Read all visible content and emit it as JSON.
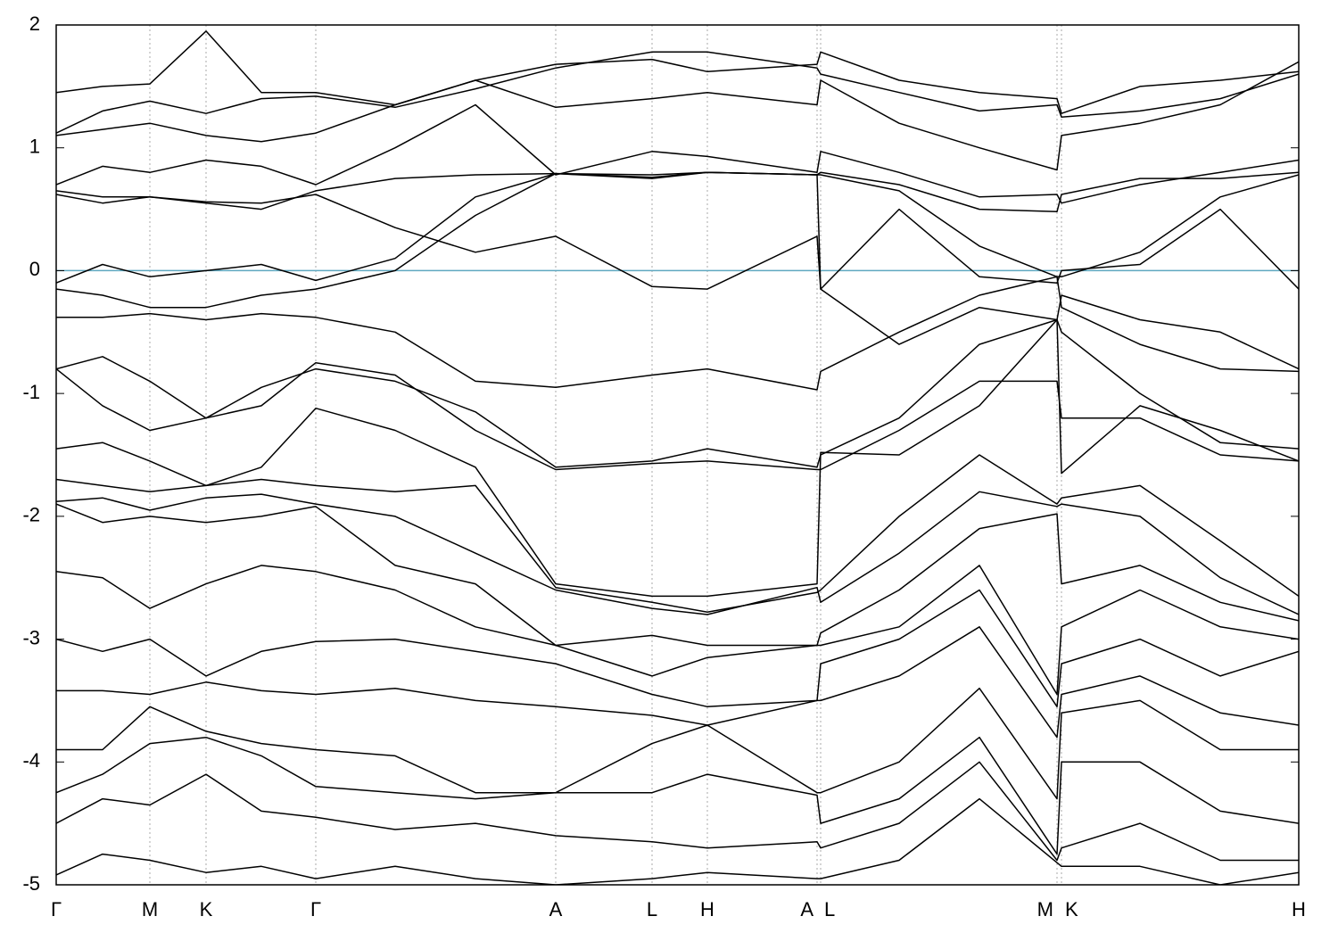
{
  "chart_data": {
    "type": "line",
    "color": "#000000",
    "reference_line": {
      "value": 0,
      "color": "#5fa8c0"
    },
    "xlim": [
      0,
      1393
    ],
    "xticks": [
      {
        "value": 0,
        "label": "Γ"
      },
      {
        "value": 105,
        "label": "M"
      },
      {
        "value": 168,
        "label": "K"
      },
      {
        "value": 291,
        "label": "Γ"
      },
      {
        "value": 560,
        "label": "A"
      },
      {
        "value": 668,
        "label": "L"
      },
      {
        "value": 730,
        "label": "H"
      },
      {
        "value": 853,
        "label": "A"
      },
      {
        "value": 857,
        "label": "L"
      },
      {
        "value": 1122,
        "label": "M"
      },
      {
        "value": 1127,
        "label": "K"
      },
      {
        "value": 1393,
        "label": "H"
      }
    ],
    "ylim": [
      -5,
      2
    ],
    "yticks": [
      -5,
      -4,
      -3,
      -2,
      -1,
      0,
      1,
      2
    ],
    "x_grid": true,
    "x": [
      0,
      52,
      105,
      168,
      230,
      291,
      380,
      470,
      560,
      668,
      730,
      853,
      857,
      945,
      1035,
      1122,
      1127,
      1215,
      1305,
      1393
    ],
    "series": [
      {
        "values": [
          1.45,
          1.5,
          1.52,
          1.95,
          1.45,
          1.45,
          1.35,
          1.55,
          1.68,
          1.72,
          1.62,
          1.68,
          1.78,
          1.55,
          1.45,
          1.4,
          1.28,
          1.5,
          1.55,
          1.62
        ]
      },
      {
        "values": [
          1.12,
          1.3,
          1.38,
          1.28,
          1.4,
          1.42,
          1.33,
          1.48,
          1.65,
          1.78,
          1.78,
          1.65,
          1.6,
          1.45,
          1.3,
          1.35,
          1.25,
          1.3,
          1.4,
          1.6
        ]
      },
      {
        "values": [
          1.1,
          1.15,
          1.2,
          1.1,
          1.05,
          1.12,
          1.35,
          1.55,
          1.33,
          1.4,
          1.45,
          1.35,
          1.55,
          1.2,
          1.0,
          0.82,
          1.1,
          1.2,
          1.35,
          1.7
        ]
      },
      {
        "values": [
          0.7,
          0.85,
          0.8,
          0.9,
          0.85,
          0.7,
          1.0,
          1.35,
          0.78,
          0.97,
          0.93,
          0.8,
          0.97,
          0.8,
          0.6,
          0.62,
          0.55,
          0.7,
          0.8,
          0.9
        ]
      },
      {
        "values": [
          0.65,
          0.6,
          0.6,
          0.55,
          0.5,
          0.65,
          0.75,
          0.78,
          0.79,
          0.75,
          0.8,
          0.78,
          0.8,
          0.7,
          0.5,
          0.48,
          0.62,
          0.75,
          0.75,
          0.8
        ]
      },
      {
        "values": [
          0.62,
          0.55,
          0.6,
          0.56,
          0.55,
          0.62,
          0.35,
          0.15,
          0.28,
          -0.13,
          -0.15,
          0.28,
          -0.15,
          0.5,
          -0.05,
          -0.1,
          0.0,
          0.05,
          0.5,
          -0.15
        ]
      },
      {
        "values": [
          -0.1,
          0.05,
          -0.05,
          0.0,
          0.05,
          -0.08,
          0.1,
          0.6,
          0.79,
          0.78,
          0.8,
          0.78,
          0.78,
          0.65,
          0.2,
          -0.05,
          -0.05,
          0.15,
          0.6,
          0.78
        ]
      },
      {
        "values": [
          -0.15,
          -0.2,
          -0.3,
          -0.3,
          -0.2,
          -0.15,
          0.0,
          0.45,
          0.79,
          0.76,
          0.8,
          0.78,
          -0.15,
          -0.6,
          -0.3,
          -0.4,
          -0.2,
          -0.4,
          -0.5,
          -0.8
        ]
      },
      {
        "values": [
          -0.38,
          -0.38,
          -0.35,
          -0.4,
          -0.35,
          -0.38,
          -0.5,
          -0.9,
          -0.95,
          -0.85,
          -0.8,
          -0.97,
          -0.82,
          -0.5,
          -0.2,
          -0.05,
          -0.3,
          -0.6,
          -0.8,
          -0.82
        ]
      },
      {
        "values": [
          -0.8,
          -0.7,
          -0.9,
          -1.2,
          -0.95,
          -0.8,
          -0.9,
          -1.15,
          -1.6,
          -1.55,
          -1.45,
          -1.6,
          -1.5,
          -1.2,
          -0.6,
          -0.4,
          -0.5,
          -1.0,
          -1.4,
          -1.45
        ]
      },
      {
        "values": [
          -0.8,
          -1.1,
          -1.3,
          -1.2,
          -1.1,
          -0.75,
          -0.85,
          -1.3,
          -1.62,
          -1.57,
          -1.55,
          -1.62,
          -1.62,
          -1.3,
          -0.9,
          -0.9,
          -1.2,
          -1.2,
          -1.5,
          -1.55
        ]
      },
      {
        "values": [
          -1.45,
          -1.4,
          -1.55,
          -1.75,
          -1.6,
          -1.12,
          -1.3,
          -1.6,
          -2.55,
          -2.65,
          -2.65,
          -2.55,
          -1.48,
          -1.5,
          -1.1,
          -0.4,
          -1.65,
          -1.1,
          -1.3,
          -1.55
        ]
      },
      {
        "values": [
          -1.7,
          -1.75,
          -1.8,
          -1.75,
          -1.7,
          -1.75,
          -1.8,
          -1.75,
          -2.58,
          -2.7,
          -2.78,
          -2.62,
          -2.6,
          -2.0,
          -1.5,
          -1.9,
          -1.85,
          -1.75,
          -2.2,
          -2.65
        ]
      },
      {
        "values": [
          -1.88,
          -1.85,
          -1.95,
          -1.85,
          -1.82,
          -1.9,
          -2.0,
          -2.3,
          -2.6,
          -2.75,
          -2.8,
          -2.58,
          -2.7,
          -2.3,
          -1.8,
          -1.92,
          -1.9,
          -2.0,
          -2.5,
          -2.8
        ]
      },
      {
        "values": [
          -1.9,
          -2.05,
          -2.0,
          -2.05,
          -2.0,
          -1.92,
          -2.4,
          -2.55,
          -3.05,
          -2.97,
          -3.05,
          -3.05,
          -2.95,
          -2.6,
          -2.1,
          -1.98,
          -2.55,
          -2.4,
          -2.7,
          -2.85
        ]
      },
      {
        "values": [
          -2.45,
          -2.5,
          -2.75,
          -2.55,
          -2.4,
          -2.45,
          -2.6,
          -2.9,
          -3.05,
          -3.3,
          -3.15,
          -3.05,
          -3.05,
          -2.9,
          -2.4,
          -3.45,
          -2.9,
          -2.6,
          -2.9,
          -3.0
        ]
      },
      {
        "values": [
          -3.0,
          -3.1,
          -3.0,
          -3.3,
          -3.1,
          -3.02,
          -3.0,
          -3.1,
          -3.2,
          -3.45,
          -3.55,
          -3.5,
          -3.2,
          -3.0,
          -2.6,
          -3.55,
          -3.2,
          -3.0,
          -3.3,
          -3.1
        ]
      },
      {
        "values": [
          -3.42,
          -3.42,
          -3.45,
          -3.35,
          -3.42,
          -3.45,
          -3.4,
          -3.5,
          -3.55,
          -3.62,
          -3.7,
          -3.5,
          -3.5,
          -3.3,
          -2.9,
          -3.8,
          -3.45,
          -3.3,
          -3.6,
          -3.7
        ]
      },
      {
        "values": [
          -3.9,
          -3.9,
          -3.55,
          -3.75,
          -3.85,
          -3.9,
          -3.95,
          -4.25,
          -4.25,
          -3.85,
          -3.7,
          -4.25,
          -4.25,
          -4.0,
          -3.4,
          -4.3,
          -3.6,
          -3.5,
          -3.9,
          -3.9
        ]
      },
      {
        "values": [
          -4.25,
          -4.1,
          -3.85,
          -3.8,
          -3.95,
          -4.2,
          -4.25,
          -4.3,
          -4.25,
          -4.25,
          -4.1,
          -4.27,
          -4.5,
          -4.3,
          -3.8,
          -4.75,
          -4.0,
          -4.0,
          -4.4,
          -4.5
        ]
      },
      {
        "values": [
          -4.5,
          -4.3,
          -4.35,
          -4.1,
          -4.4,
          -4.45,
          -4.55,
          -4.5,
          -4.6,
          -4.65,
          -4.7,
          -4.65,
          -4.7,
          -4.5,
          -4.0,
          -4.8,
          -4.7,
          -4.5,
          -4.8,
          -4.8
        ]
      },
      {
        "values": [
          -4.92,
          -4.75,
          -4.8,
          -4.9,
          -4.85,
          -4.95,
          -4.85,
          -4.95,
          -5.0,
          -4.95,
          -4.9,
          -4.95,
          -4.95,
          -4.8,
          -4.3,
          -4.82,
          -4.85,
          -4.85,
          -5.0,
          -4.9
        ]
      }
    ]
  }
}
